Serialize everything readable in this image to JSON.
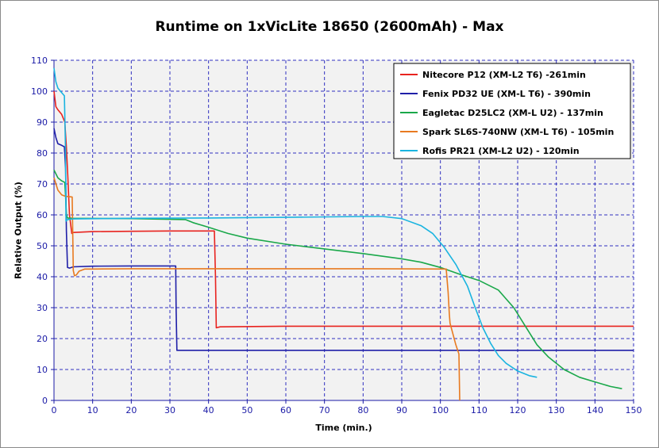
{
  "chart_data": {
    "type": "line",
    "title": "Runtime on 1xVicLite 18650 (2600mAh) - Max",
    "xlabel": "Time (min.)",
    "ylabel": "Relative Output (%)",
    "xlim": [
      0,
      150
    ],
    "ylim": [
      0,
      110
    ],
    "xticks": [
      "0",
      "10",
      "20",
      "30",
      "40",
      "50",
      "60",
      "70",
      "80",
      "90",
      "100",
      "110",
      "120",
      "130",
      "140",
      "150"
    ],
    "yticks": [
      "0",
      "10",
      "20",
      "30",
      "40",
      "50",
      "60",
      "70",
      "80",
      "90",
      "100",
      "110"
    ],
    "grid": true,
    "legend_position": "top-right",
    "series": [
      {
        "name": "Nitecore P12 (XM-L2 T6) -261min",
        "color": "#e8231f",
        "points": [
          [
            0,
            100
          ],
          [
            0.5,
            95
          ],
          [
            1,
            94
          ],
          [
            2,
            92.5
          ],
          [
            2.8,
            90
          ],
          [
            3.2,
            82
          ],
          [
            3.6,
            72
          ],
          [
            4,
            60
          ],
          [
            4.6,
            54
          ],
          [
            5,
            54.3
          ],
          [
            10,
            54.6
          ],
          [
            20,
            54.7
          ],
          [
            30,
            54.8
          ],
          [
            41.5,
            54.8
          ],
          [
            41.8,
            40
          ],
          [
            42,
            23.5
          ],
          [
            43,
            23.8
          ],
          [
            60,
            24
          ],
          [
            80,
            24
          ],
          [
            100,
            24
          ],
          [
            120,
            24
          ],
          [
            150,
            24
          ]
        ]
      },
      {
        "name": "Fenix PD32 UE (XM-L T6) - 390min",
        "color": "#1f1fa8",
        "points": [
          [
            0,
            88
          ],
          [
            0.5,
            85
          ],
          [
            1,
            83
          ],
          [
            2,
            82.5
          ],
          [
            2.7,
            82
          ],
          [
            3,
            75
          ],
          [
            3.2,
            55
          ],
          [
            3.5,
            43
          ],
          [
            4,
            42.8
          ],
          [
            5,
            43.2
          ],
          [
            10,
            43.4
          ],
          [
            20,
            43.5
          ],
          [
            31.5,
            43.5
          ],
          [
            31.6,
            30
          ],
          [
            31.8,
            16.2
          ],
          [
            33,
            16.2
          ],
          [
            60,
            16.2
          ],
          [
            100,
            16.2
          ],
          [
            150,
            16.2
          ]
        ]
      },
      {
        "name": "Eagletac D25LC2 (XM-L U2) - 137min",
        "color": "#1aa84a",
        "points": [
          [
            0,
            74.5
          ],
          [
            1,
            72
          ],
          [
            2,
            71
          ],
          [
            2.8,
            70.5
          ],
          [
            3,
            66
          ],
          [
            3.2,
            60
          ],
          [
            3.5,
            59
          ],
          [
            5,
            58.9
          ],
          [
            20,
            58.8
          ],
          [
            34,
            58.5
          ],
          [
            36,
            57.5
          ],
          [
            40,
            56
          ],
          [
            45,
            54
          ],
          [
            50,
            52.5
          ],
          [
            60,
            50.5
          ],
          [
            70,
            49
          ],
          [
            80,
            47.5
          ],
          [
            90,
            45.8
          ],
          [
            95,
            44.7
          ],
          [
            100,
            43
          ],
          [
            105,
            40.8
          ],
          [
            110,
            38.8
          ],
          [
            115,
            35.7
          ],
          [
            119,
            30
          ],
          [
            122,
            24
          ],
          [
            125,
            18
          ],
          [
            128,
            14
          ],
          [
            132,
            10
          ],
          [
            136,
            7.5
          ],
          [
            140,
            6
          ],
          [
            144,
            4.5
          ],
          [
            147,
            3.8
          ]
        ]
      },
      {
        "name": "Spark SL6S-740NW  (XM-L T6) - 105min",
        "color": "#e87a20",
        "points": [
          [
            0,
            72
          ],
          [
            1,
            68
          ],
          [
            2,
            66.5
          ],
          [
            3,
            66
          ],
          [
            4.7,
            65.8
          ],
          [
            4.8,
            58
          ],
          [
            5,
            42
          ],
          [
            5.3,
            40.3
          ],
          [
            5.8,
            40.6
          ],
          [
            6.5,
            41.8
          ],
          [
            8,
            42.5
          ],
          [
            10,
            42.5
          ],
          [
            20,
            42.6
          ],
          [
            40,
            42.6
          ],
          [
            60,
            42.6
          ],
          [
            80,
            42.6
          ],
          [
            101.5,
            42.5
          ],
          [
            102,
            35
          ],
          [
            102.3,
            28
          ],
          [
            102.5,
            25
          ],
          [
            104,
            18
          ],
          [
            104.8,
            15
          ],
          [
            105,
            0
          ]
        ]
      },
      {
        "name": "Rofis PR21 (XM-L2 U2) - 120min",
        "color": "#1ab4e0",
        "points": [
          [
            0,
            107.5
          ],
          [
            0.5,
            103
          ],
          [
            1,
            101
          ],
          [
            2,
            99.5
          ],
          [
            2.7,
            98.5
          ],
          [
            3,
            80
          ],
          [
            3.1,
            58
          ],
          [
            3.5,
            58.5
          ],
          [
            5,
            58.7
          ],
          [
            20,
            58.9
          ],
          [
            40,
            59
          ],
          [
            60,
            59.2
          ],
          [
            80,
            59.5
          ],
          [
            85,
            59.5
          ],
          [
            90,
            58.8
          ],
          [
            95,
            56.5
          ],
          [
            98,
            54
          ],
          [
            101,
            49.5
          ],
          [
            104,
            44
          ],
          [
            107,
            37
          ],
          [
            109,
            30
          ],
          [
            111,
            23.5
          ],
          [
            113,
            18.5
          ],
          [
            115,
            14.5
          ],
          [
            117,
            12
          ],
          [
            120,
            9.5
          ],
          [
            123,
            8
          ],
          [
            125,
            7.5
          ]
        ]
      }
    ]
  }
}
